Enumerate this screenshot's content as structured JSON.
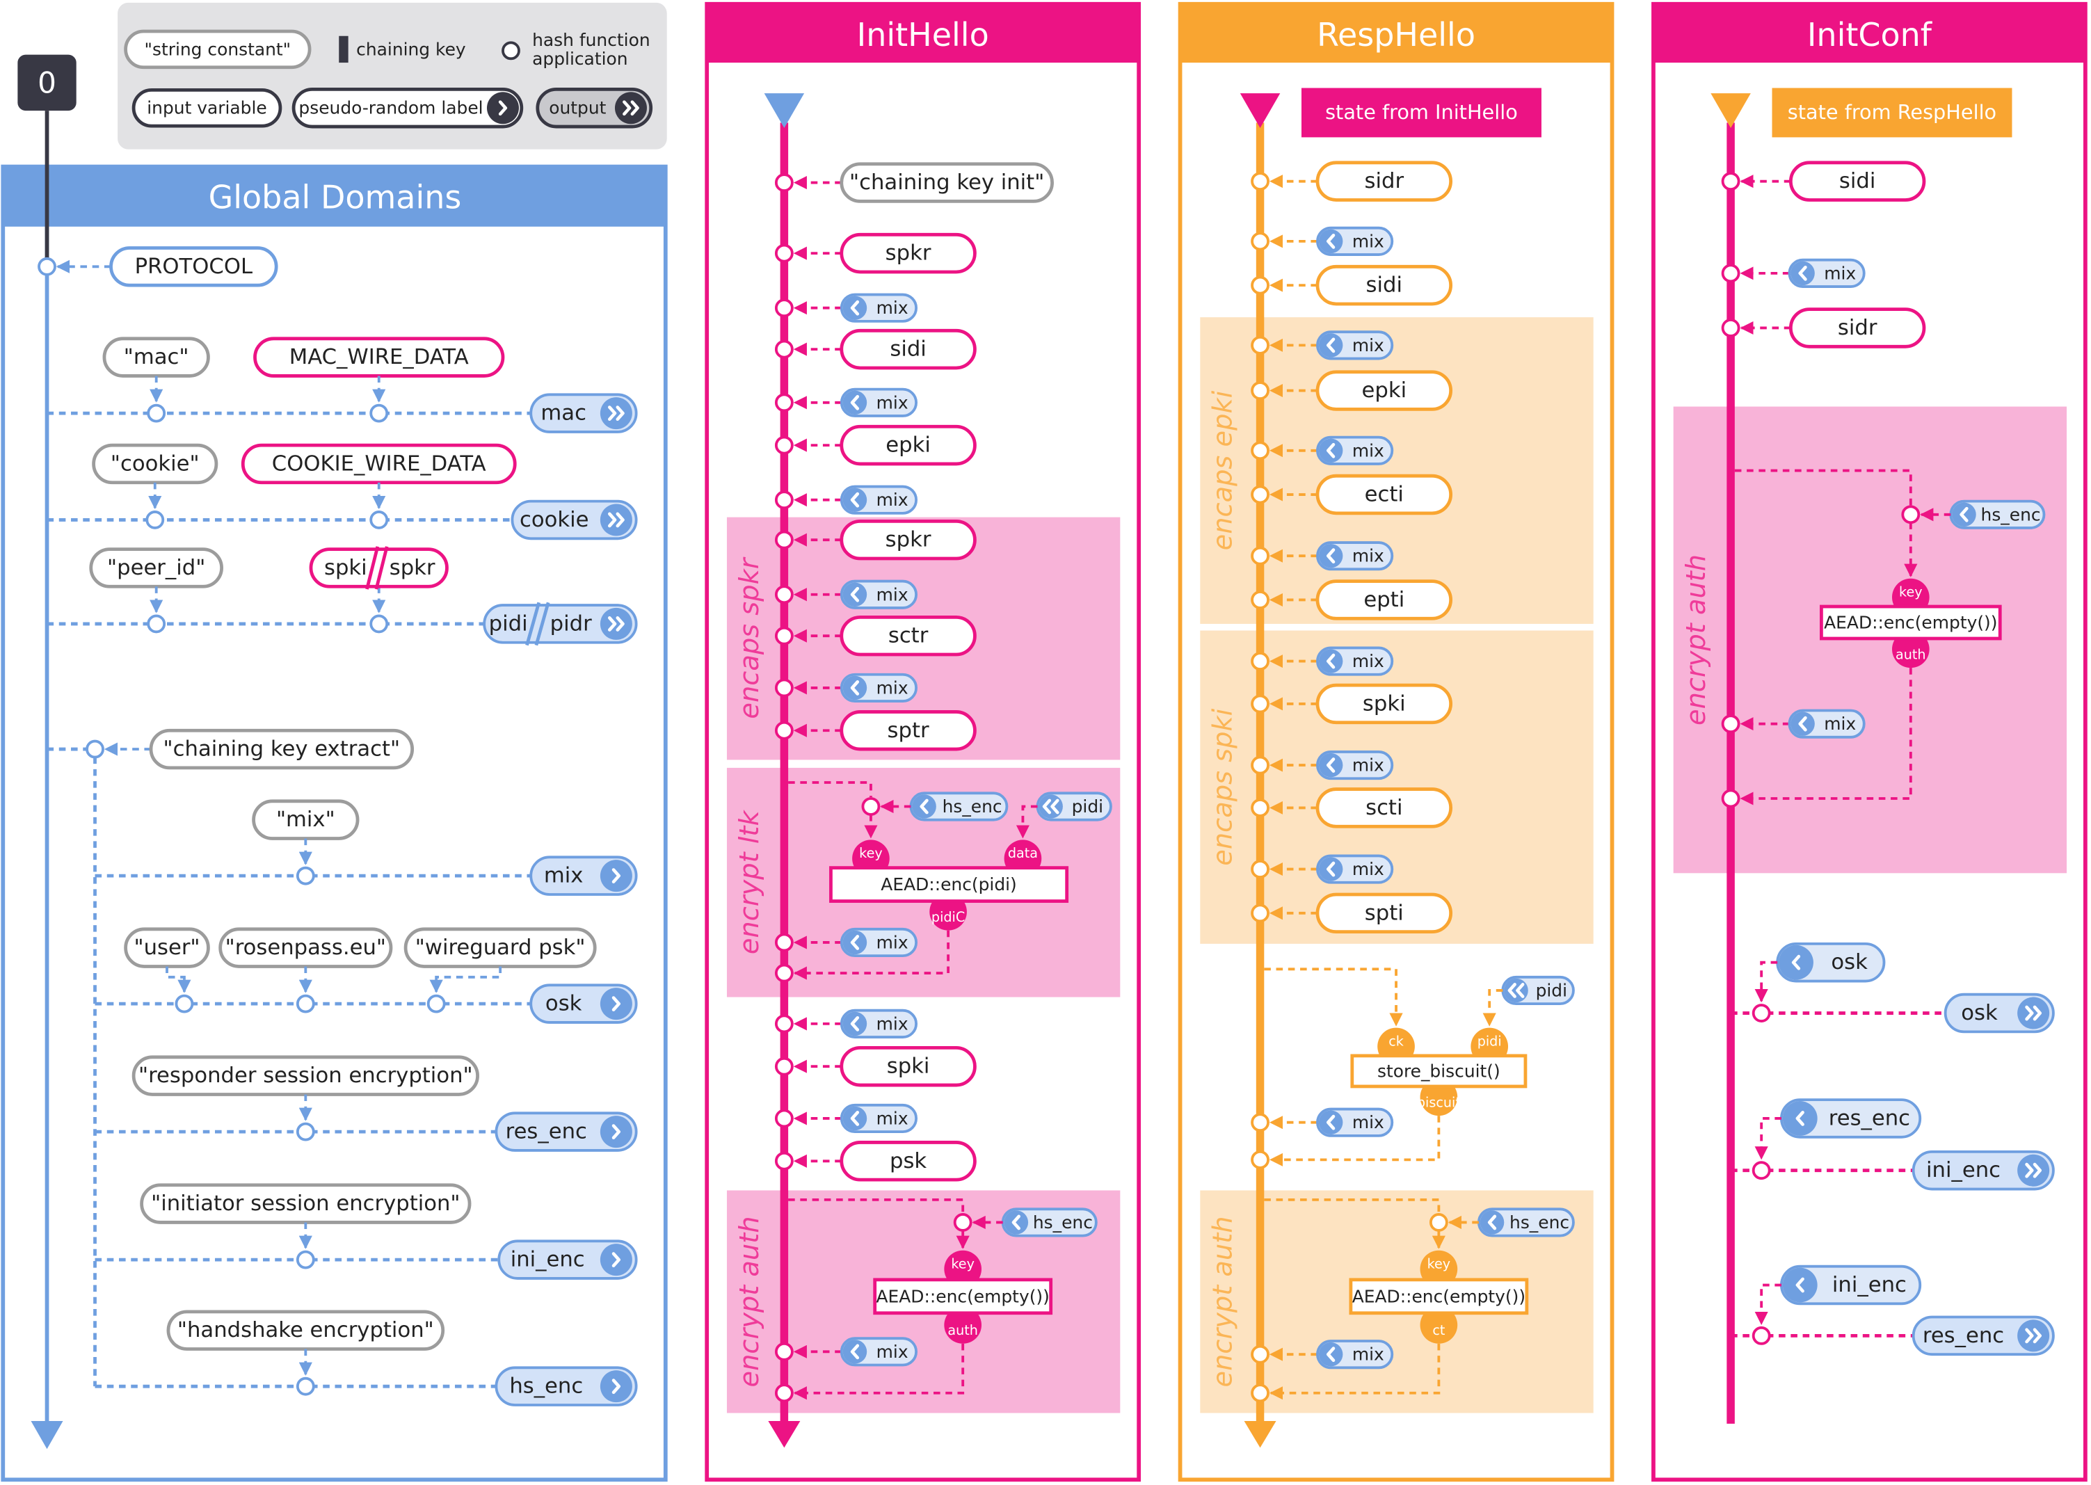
{
  "step": "0",
  "legend": {
    "string_constant": "\"string constant\"",
    "chaining_key": "chaining key",
    "hash_function_application": [
      "hash function",
      "application"
    ],
    "input_variable": "input variable",
    "pseudo_random_label": "pseudo-random label",
    "output": "output"
  },
  "panels": [
    {
      "title": "Global Domains",
      "nodes": [
        "PROTOCOL",
        "\"mac\"",
        "MAC_WIRE_DATA",
        "mac",
        "\"cookie\"",
        "COOKIE_WIRE_DATA",
        "cookie",
        "\"peer_id\"",
        "spki",
        "spkr",
        "pidi",
        "pidr",
        "\"chaining key extract\"",
        "\"mix\"",
        "mix",
        "\"user\"",
        "\"rosenpass.eu\"",
        "\"wireguard psk\"",
        "osk",
        "\"responder session encryption\"",
        "res_enc",
        "\"initiator session encryption\"",
        "ini_enc",
        "\"handshake encryption\"",
        "hs_enc"
      ]
    },
    {
      "title": "InitHello",
      "sections": [
        "encaps spkr",
        "encrypt ltk",
        "encrypt auth"
      ],
      "nodes": [
        "\"chaining key init\"",
        "spkr",
        "mix",
        "sidi",
        "mix",
        "epki",
        "mix",
        "spkr",
        "mix",
        "sctr",
        "mix",
        "sptr",
        "hs_enc",
        "pidi",
        "key",
        "data",
        "AEAD::enc(pidi)",
        "pidiC",
        "mix",
        "mix",
        "spki",
        "mix",
        "psk",
        "hs_enc",
        "key",
        "AEAD::enc(empty())",
        "auth",
        "mix"
      ]
    },
    {
      "title": "RespHello",
      "state_from": "state from InitHello",
      "sections": [
        "encaps epki",
        "encaps spki",
        "encrypt auth"
      ],
      "nodes": [
        "sidr",
        "mix",
        "sidi",
        "mix",
        "epki",
        "mix",
        "ecti",
        "mix",
        "epti",
        "mix",
        "spki",
        "mix",
        "scti",
        "mix",
        "spti",
        "pidi",
        "ck",
        "pidi",
        "store_biscuit()",
        "biscuit",
        "mix",
        "hs_enc",
        "key",
        "AEAD::enc(empty())",
        "ct",
        "mix"
      ]
    },
    {
      "title": "InitConf",
      "state_from": "state from RespHello",
      "sections": [
        "encrypt auth"
      ],
      "nodes": [
        "sidi",
        "mix",
        "sidr",
        "hs_enc",
        "key",
        "AEAD::enc(empty())",
        "auth",
        "mix",
        "osk",
        "osk",
        "res_enc",
        "ini_enc",
        "ini_enc",
        "res_enc"
      ]
    }
  ]
}
